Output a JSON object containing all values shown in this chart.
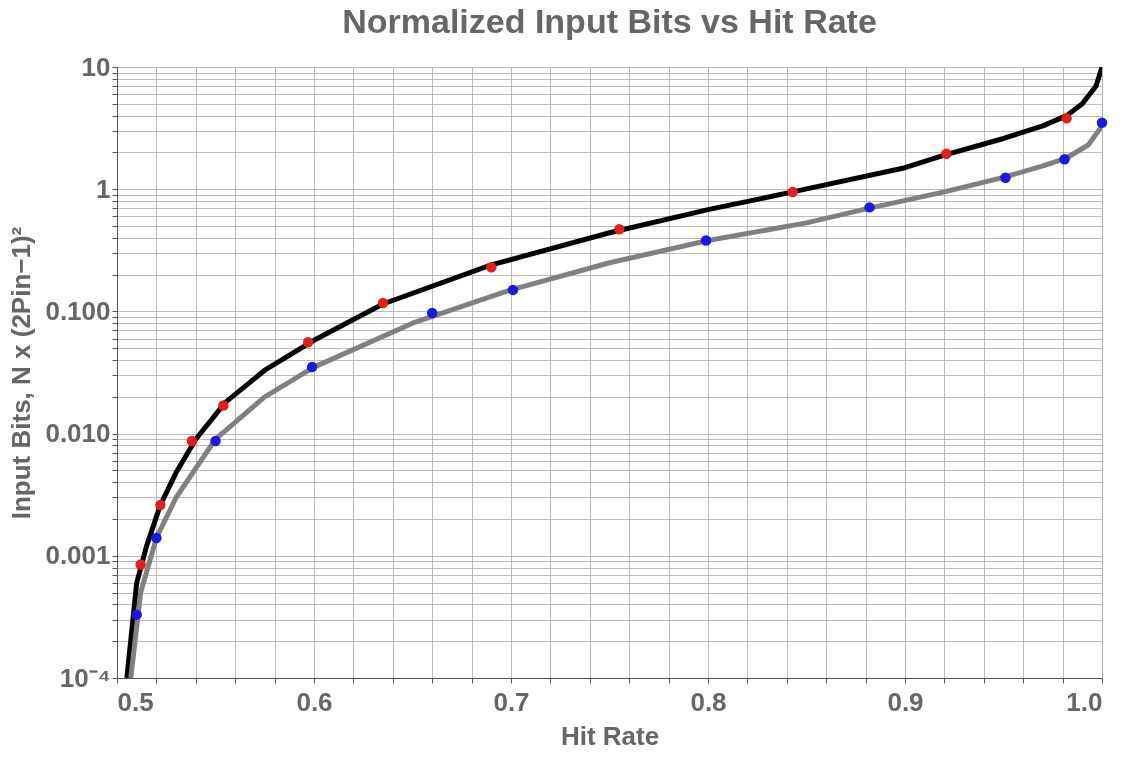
{
  "chart_data": {
    "type": "line",
    "title": "Normalized Input Bits vs Hit Rate",
    "xlabel": "Hit Rate",
    "ylabel": "Input Bits,  N x (2Pin−1)²",
    "log": "y",
    "grid": true,
    "xlim": [
      0.5,
      1.0
    ],
    "ylim": [
      0.0001,
      10
    ],
    "xticks": [
      {
        "value": 0.5,
        "label": "0.5"
      },
      {
        "value": 0.52,
        "label": null
      },
      {
        "value": 0.54,
        "label": null
      },
      {
        "value": 0.56,
        "label": null
      },
      {
        "value": 0.58,
        "label": null
      },
      {
        "value": 0.6,
        "label": "0.6"
      },
      {
        "value": 0.62,
        "label": null
      },
      {
        "value": 0.64,
        "label": null
      },
      {
        "value": 0.66,
        "label": null
      },
      {
        "value": 0.68,
        "label": null
      },
      {
        "value": 0.7,
        "label": "0.7"
      },
      {
        "value": 0.72,
        "label": null
      },
      {
        "value": 0.74,
        "label": null
      },
      {
        "value": 0.76,
        "label": null
      },
      {
        "value": 0.78,
        "label": null
      },
      {
        "value": 0.8,
        "label": "0.8"
      },
      {
        "value": 0.82,
        "label": null
      },
      {
        "value": 0.84,
        "label": null
      },
      {
        "value": 0.86,
        "label": null
      },
      {
        "value": 0.88,
        "label": null
      },
      {
        "value": 0.9,
        "label": "0.9"
      },
      {
        "value": 0.92,
        "label": null
      },
      {
        "value": 0.94,
        "label": null
      },
      {
        "value": 0.96,
        "label": null
      },
      {
        "value": 0.98,
        "label": null
      },
      {
        "value": 1.0,
        "label": "1.0"
      }
    ],
    "yticks": [
      {
        "value": 0.0001,
        "label": "10⁻⁴"
      },
      {
        "value": 0.0002,
        "label": null
      },
      {
        "value": 0.0003,
        "label": null
      },
      {
        "value": 0.0004,
        "label": null
      },
      {
        "value": 0.0005,
        "label": null
      },
      {
        "value": 0.0006,
        "label": null
      },
      {
        "value": 0.0007,
        "label": null
      },
      {
        "value": 0.0008,
        "label": null
      },
      {
        "value": 0.0009,
        "label": null
      },
      {
        "value": 0.001,
        "label": "0.001"
      },
      {
        "value": 0.002,
        "label": null
      },
      {
        "value": 0.003,
        "label": null
      },
      {
        "value": 0.004,
        "label": null
      },
      {
        "value": 0.005,
        "label": null
      },
      {
        "value": 0.006,
        "label": null
      },
      {
        "value": 0.007,
        "label": null
      },
      {
        "value": 0.008,
        "label": null
      },
      {
        "value": 0.009,
        "label": null
      },
      {
        "value": 0.01,
        "label": "0.010"
      },
      {
        "value": 0.02,
        "label": null
      },
      {
        "value": 0.03,
        "label": null
      },
      {
        "value": 0.04,
        "label": null
      },
      {
        "value": 0.05,
        "label": null
      },
      {
        "value": 0.06,
        "label": null
      },
      {
        "value": 0.07,
        "label": null
      },
      {
        "value": 0.08,
        "label": null
      },
      {
        "value": 0.09,
        "label": null
      },
      {
        "value": 0.1,
        "label": "0.100"
      },
      {
        "value": 0.2,
        "label": null
      },
      {
        "value": 0.3,
        "label": null
      },
      {
        "value": 0.4,
        "label": null
      },
      {
        "value": 0.5,
        "label": null
      },
      {
        "value": 0.6,
        "label": null
      },
      {
        "value": 0.7,
        "label": null
      },
      {
        "value": 0.8,
        "label": null
      },
      {
        "value": 0.9,
        "label": null
      },
      {
        "value": 1,
        "label": "1"
      },
      {
        "value": 2,
        "label": null
      },
      {
        "value": 3,
        "label": null
      },
      {
        "value": 4,
        "label": null
      },
      {
        "value": 5,
        "label": null
      },
      {
        "value": 6,
        "label": null
      },
      {
        "value": 7,
        "label": null
      },
      {
        "value": 8,
        "label": null
      },
      {
        "value": 9,
        "label": null
      },
      {
        "value": 10,
        "label": "10"
      }
    ],
    "series": [
      {
        "color": "#000000",
        "x": [
          0.505,
          0.51,
          0.515,
          0.522,
          0.53,
          0.54,
          0.555,
          0.575,
          0.6,
          0.635,
          0.69,
          0.75,
          0.8,
          0.843,
          0.9,
          0.92,
          0.95,
          0.97,
          0.982,
          0.99,
          0.997,
          1.0
        ],
        "values": [
          0.0001,
          0.0006,
          0.0012,
          0.0026,
          0.0048,
          0.009,
          0.018,
          0.033,
          0.058,
          0.115,
          0.24,
          0.44,
          0.68,
          0.95,
          1.5,
          1.9,
          2.6,
          3.3,
          4.0,
          5,
          7,
          10
        ]
      },
      {
        "color": "#808080",
        "x": [
          0.507,
          0.512,
          0.52,
          0.53,
          0.55,
          0.575,
          0.6,
          0.65,
          0.7,
          0.75,
          0.8,
          0.85,
          0.882,
          0.92,
          0.95,
          0.97,
          0.982,
          0.993,
          1.0
        ],
        "values": [
          0.0001,
          0.0005,
          0.0014,
          0.003,
          0.009,
          0.02,
          0.035,
          0.08,
          0.15,
          0.25,
          0.38,
          0.53,
          0.7,
          0.95,
          1.25,
          1.55,
          1.8,
          2.3,
          3.3
        ]
      },
      {
        "type": "scatter",
        "color": "#e0201b",
        "marker": "circle",
        "x": [
          0.512,
          0.522,
          0.538,
          0.554,
          0.597,
          0.635,
          0.69,
          0.755,
          0.843,
          0.921,
          0.982
        ],
        "values": [
          0.00085,
          0.0026,
          0.0087,
          0.017,
          0.056,
          0.117,
          0.23,
          0.47,
          0.95,
          1.95,
          3.8
        ]
      },
      {
        "type": "scatter",
        "color": "#1a1adf",
        "marker": "circle",
        "x": [
          0.51,
          0.52,
          0.55,
          0.599,
          0.66,
          0.701,
          0.799,
          0.882,
          0.951,
          0.981,
          1.0
        ],
        "values": [
          0.00033,
          0.0014,
          0.0087,
          0.035,
          0.097,
          0.15,
          0.38,
          0.71,
          1.24,
          1.76,
          3.5
        ]
      }
    ]
  }
}
